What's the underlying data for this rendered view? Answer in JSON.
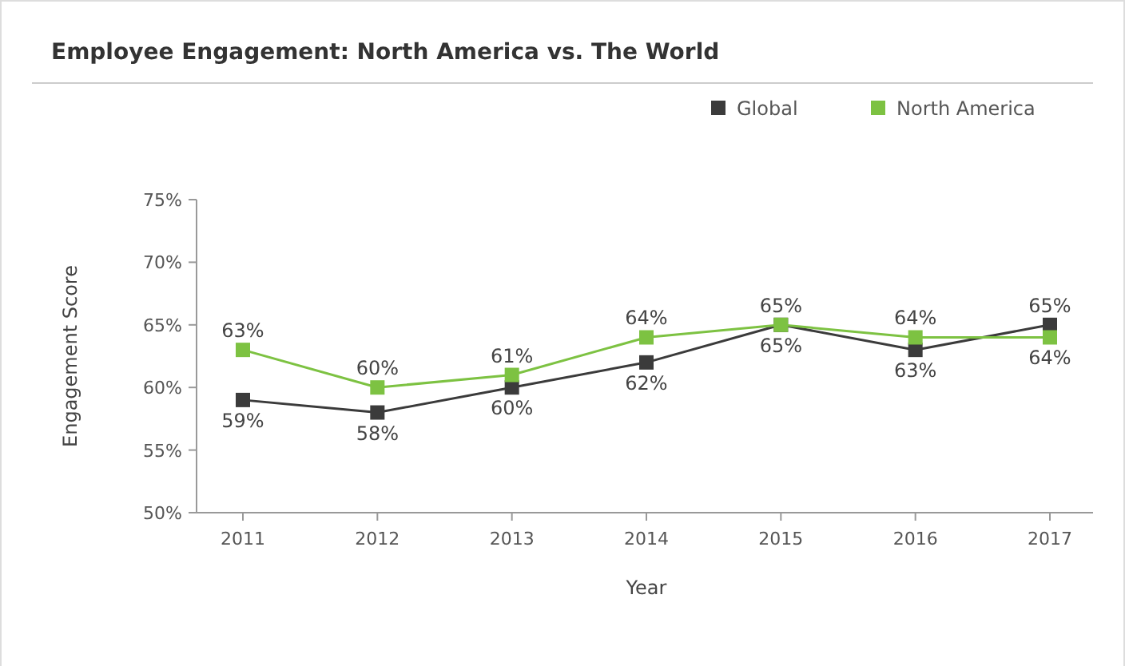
{
  "chart_data": {
    "type": "line",
    "title": "Employee Engagement: North America vs. The World",
    "xlabel": "Year",
    "ylabel": "Engagement Score",
    "categories": [
      "2011",
      "2012",
      "2013",
      "2014",
      "2015",
      "2016",
      "2017"
    ],
    "ylim": [
      50,
      75
    ],
    "yticks": [
      {
        "value": 50,
        "label": "50%"
      },
      {
        "value": 55,
        "label": "55%"
      },
      {
        "value": 60,
        "label": "60%"
      },
      {
        "value": 65,
        "label": "65%"
      },
      {
        "value": 70,
        "label": "70%"
      },
      {
        "value": 75,
        "label": "75%"
      }
    ],
    "series": [
      {
        "name": "Global",
        "color": "#3b3b3b",
        "values": [
          59,
          58,
          60,
          62,
          65,
          63,
          65
        ],
        "value_labels": [
          "59%",
          "58%",
          "60%",
          "62%",
          "65%",
          "63%",
          "65%"
        ]
      },
      {
        "name": "North America",
        "color": "#7dc242",
        "values": [
          63,
          60,
          61,
          64,
          65,
          64,
          64
        ],
        "value_labels": [
          "63%",
          "60%",
          "61%",
          "64%",
          "65%",
          "64%",
          "64%"
        ]
      }
    ],
    "marker": "square",
    "line_style": "solid",
    "grid": false,
    "legend": "top right"
  }
}
